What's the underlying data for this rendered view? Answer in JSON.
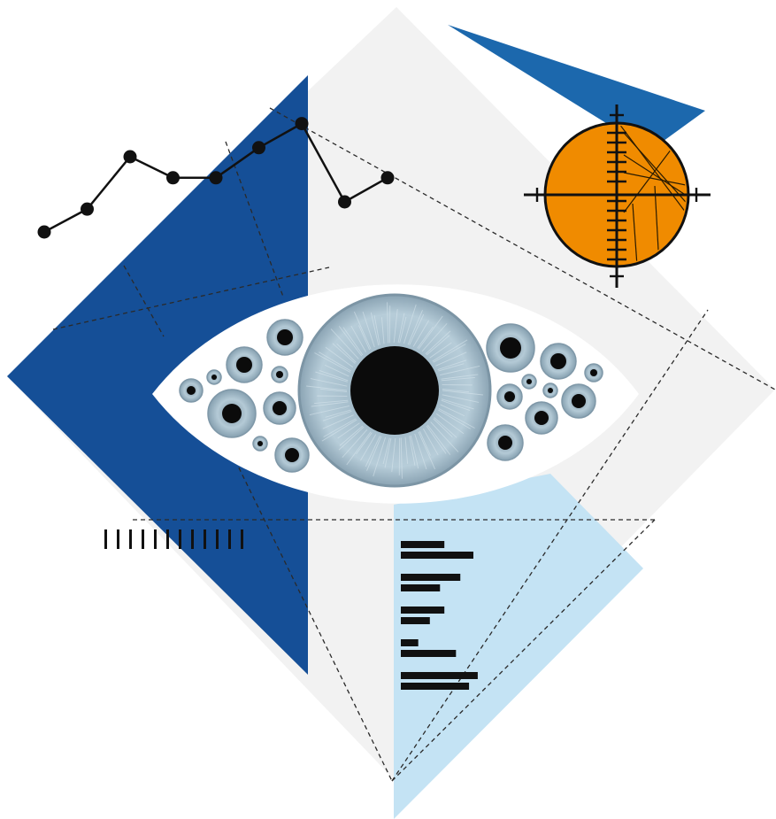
{
  "palette": {
    "background": "#ffffff",
    "light_gray": "#f2f2f2",
    "deep_blue": "#154f97",
    "medium_blue": "#1c68ad",
    "light_blue": "#c4e3f4",
    "orange": "#f08b00",
    "ink": "#111111",
    "iris": "#aac2d0",
    "iris_dark": "#6f8797",
    "pupil": "#0b0b0b"
  },
  "icons": [
    "eye-icon",
    "line-chart-icon",
    "crosshair-icon",
    "barcode-icon",
    "bar-list-icon"
  ],
  "line_chart_points": [
    0.5,
    0.88,
    1.75,
    1.4,
    1.4,
    1.9,
    2.3,
    1.0,
    1.4
  ],
  "barcode_ticks": 12,
  "bar_list_pairs": [
    [
      0.6,
      1.0
    ],
    [
      0.82,
      0.54
    ],
    [
      0.6,
      0.4
    ],
    [
      0.24,
      0.76
    ],
    [
      1.06,
      0.94
    ]
  ]
}
